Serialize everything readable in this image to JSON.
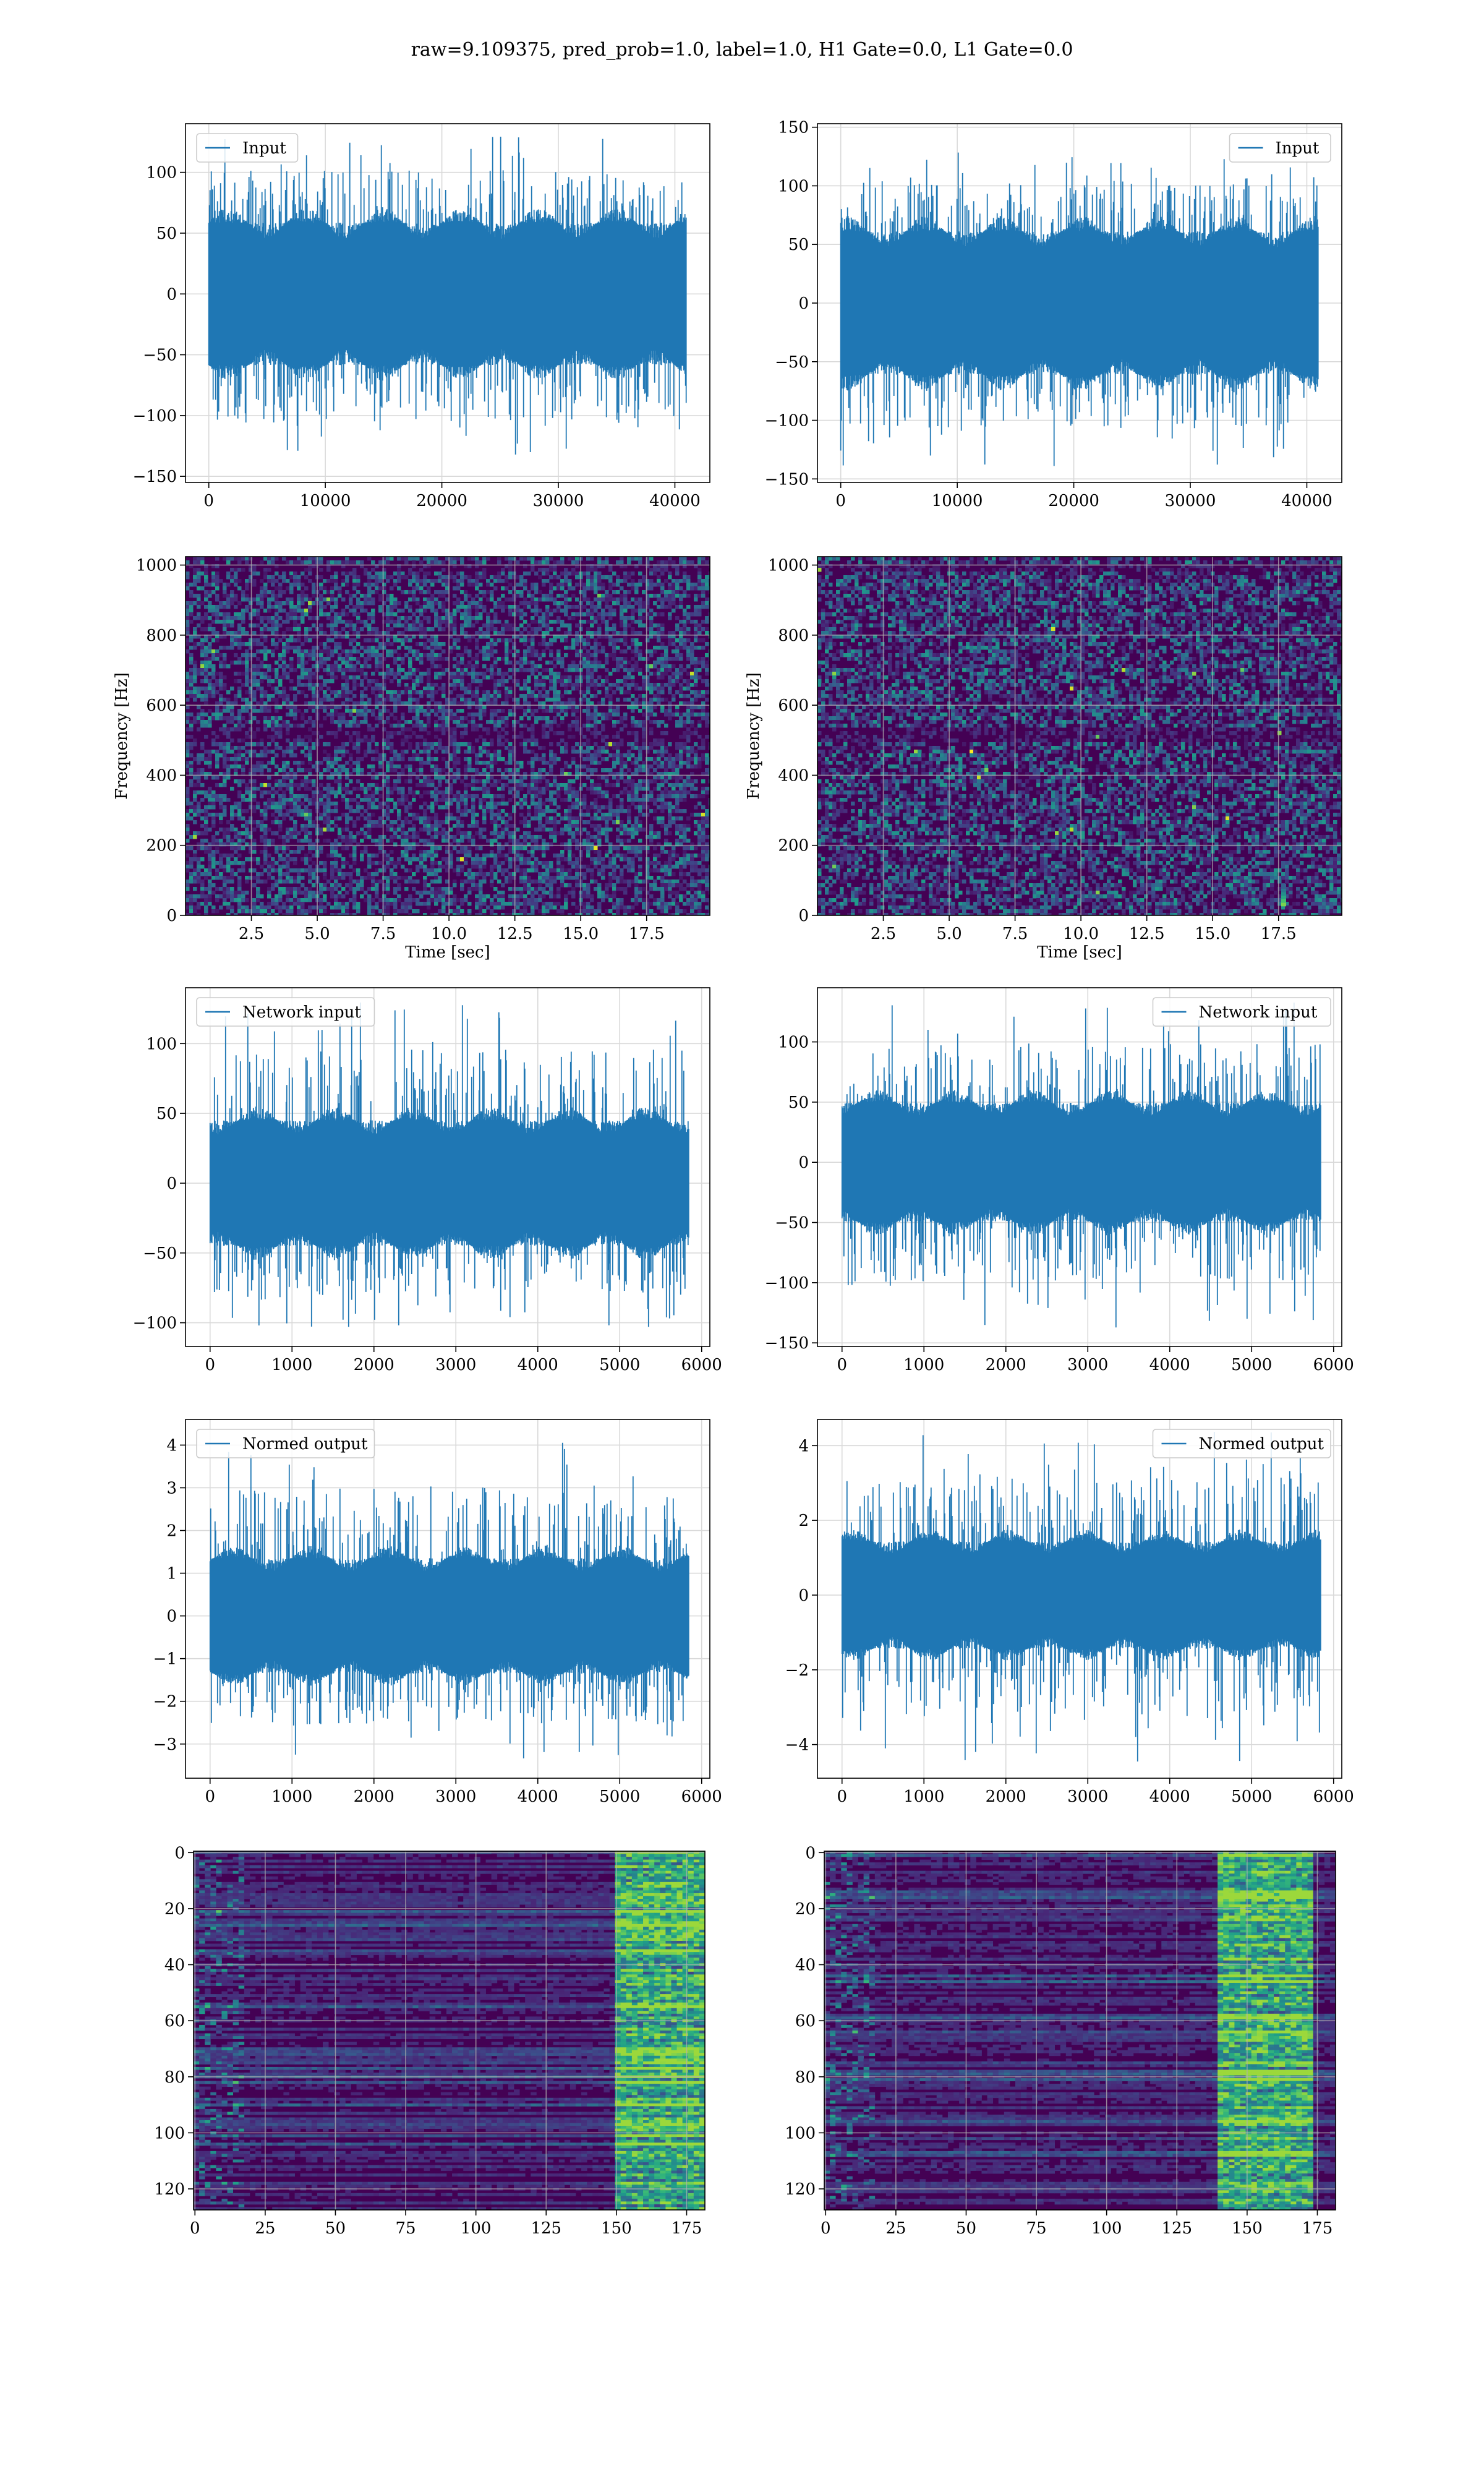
{
  "figure": {
    "suptitle": "raw=9.109375, pred_prob=1.0, label=1.0, H1 Gate=0.0, L1 Gate=0.0"
  },
  "colors": {
    "line": "#1f77b4",
    "grid": "#d9d9d9",
    "viridis": [
      "#440154",
      "#482878",
      "#3e4989",
      "#31688e",
      "#26828e",
      "#1f9e89",
      "#35b779",
      "#6ece58",
      "#b5de2b",
      "#fde725"
    ]
  },
  "chart_data": [
    {
      "id": "input-h1",
      "type": "line",
      "title": "",
      "xlabel": "",
      "ylabel": "",
      "legend": {
        "label": "Input",
        "loc": "upper-left"
      },
      "xlim": [
        -2000,
        43000
      ],
      "ylim": [
        -155,
        140
      ],
      "xticks": [
        0,
        10000,
        20000,
        30000,
        40000
      ],
      "yticks": [
        -150,
        -100,
        -50,
        0,
        50,
        100
      ],
      "series": [
        {
          "n": 40960,
          "x_range": [
            0,
            40960
          ],
          "typical_range": [
            -65,
            65
          ],
          "extremes": [
            -140,
            133
          ]
        }
      ],
      "grid": true
    },
    {
      "id": "input-l1",
      "type": "line",
      "title": "",
      "xlabel": "",
      "ylabel": "",
      "legend": {
        "label": "Input",
        "loc": "upper-right"
      },
      "xlim": [
        -2000,
        43000
      ],
      "ylim": [
        -153,
        153
      ],
      "xticks": [
        0,
        10000,
        20000,
        30000,
        40000
      ],
      "yticks": [
        -150,
        -100,
        -50,
        0,
        50,
        100,
        150
      ],
      "series": [
        {
          "n": 40960,
          "x_range": [
            0,
            40960
          ],
          "typical_range": [
            -68,
            68
          ],
          "extremes": [
            -140,
            130
          ]
        }
      ],
      "grid": true
    },
    {
      "id": "spectrogram-h1",
      "type": "heatmap",
      "title": "",
      "xlabel": "Time [sec]",
      "ylabel": "Frequency [Hz]",
      "xlim": [
        0,
        19.9
      ],
      "ylim": [
        0,
        1024
      ],
      "xticks": [
        2.5,
        5.0,
        7.5,
        10.0,
        12.5,
        15.0,
        17.5
      ],
      "xtick_labels": [
        "2.5",
        "5.0",
        "7.5",
        "10.0",
        "12.5",
        "15.0",
        "17.5"
      ],
      "yticks": [
        0,
        200,
        400,
        600,
        800,
        1000
      ],
      "colormap": "viridis",
      "grid": true
    },
    {
      "id": "spectrogram-l1",
      "type": "heatmap",
      "title": "",
      "xlabel": "Time [sec]",
      "ylabel": "Frequency [Hz]",
      "xlim": [
        0,
        19.9
      ],
      "ylim": [
        0,
        1024
      ],
      "xticks": [
        2.5,
        5.0,
        7.5,
        10.0,
        12.5,
        15.0,
        17.5
      ],
      "xtick_labels": [
        "2.5",
        "5.0",
        "7.5",
        "10.0",
        "12.5",
        "15.0",
        "17.5"
      ],
      "yticks": [
        0,
        200,
        400,
        600,
        800,
        1000
      ],
      "colormap": "viridis",
      "grid": true
    },
    {
      "id": "network-input-h1",
      "type": "line",
      "title": "",
      "xlabel": "",
      "ylabel": "",
      "legend": {
        "label": "Network input",
        "loc": "upper-left"
      },
      "xlim": [
        -300,
        6100
      ],
      "ylim": [
        -117,
        140
      ],
      "xticks": [
        0,
        1000,
        2000,
        3000,
        4000,
        5000,
        6000
      ],
      "yticks": [
        -100,
        -50,
        0,
        50,
        100
      ],
      "series": [
        {
          "n": 5840,
          "x_range": [
            0,
            5840
          ],
          "typical_range": [
            -50,
            50
          ],
          "extremes": [
            -105,
            133
          ]
        }
      ],
      "grid": true
    },
    {
      "id": "network-input-l1",
      "type": "line",
      "title": "",
      "xlabel": "",
      "ylabel": "",
      "legend": {
        "label": "Network input",
        "loc": "upper-right"
      },
      "xlim": [
        -300,
        6100
      ],
      "ylim": [
        -153,
        145
      ],
      "xticks": [
        0,
        1000,
        2000,
        3000,
        4000,
        5000,
        6000
      ],
      "yticks": [
        -150,
        -100,
        -50,
        0,
        50,
        100
      ],
      "series": [
        {
          "n": 5840,
          "x_range": [
            0,
            5840
          ],
          "typical_range": [
            -55,
            55
          ],
          "extremes": [
            -138,
            135
          ]
        }
      ],
      "grid": true
    },
    {
      "id": "normed-output-h1",
      "type": "line",
      "title": "",
      "xlabel": "",
      "ylabel": "",
      "legend": {
        "label": "Normed output",
        "loc": "upper-left"
      },
      "xlim": [
        -300,
        6100
      ],
      "ylim": [
        -3.8,
        4.6
      ],
      "xticks": [
        0,
        1000,
        2000,
        3000,
        4000,
        5000,
        6000
      ],
      "yticks": [
        -3,
        -2,
        -1,
        0,
        1,
        2,
        3,
        4
      ],
      "series": [
        {
          "n": 5840,
          "x_range": [
            0,
            5840
          ],
          "typical_range": [
            -1.5,
            1.5
          ],
          "extremes": [
            -3.4,
            4.3
          ]
        }
      ],
      "grid": true
    },
    {
      "id": "normed-output-l1",
      "type": "line",
      "title": "",
      "xlabel": "",
      "ylabel": "",
      "legend": {
        "label": "Normed output",
        "loc": "upper-right"
      },
      "xlim": [
        -300,
        6100
      ],
      "ylim": [
        -4.9,
        4.7
      ],
      "xticks": [
        0,
        1000,
        2000,
        3000,
        4000,
        5000,
        6000
      ],
      "yticks": [
        -4,
        -2,
        0,
        2,
        4
      ],
      "series": [
        {
          "n": 5840,
          "x_range": [
            0,
            5840
          ],
          "typical_range": [
            -1.6,
            1.6
          ],
          "extremes": [
            -4.5,
            4.4
          ]
        }
      ],
      "grid": true
    },
    {
      "id": "feature-map-h1",
      "type": "heatmap",
      "title": "",
      "xlabel": "",
      "ylabel": "",
      "xlim": [
        -0.5,
        181.5
      ],
      "ylim": [
        127.5,
        -0.5
      ],
      "xticks": [
        0,
        25,
        50,
        75,
        100,
        125,
        150,
        175
      ],
      "yticks": [
        0,
        20,
        40,
        60,
        80,
        100,
        120
      ],
      "rows": 128,
      "cols": 182,
      "active_columns": [
        150,
        182
      ],
      "colormap": "viridis",
      "grid": true
    },
    {
      "id": "feature-map-l1",
      "type": "heatmap",
      "title": "",
      "xlabel": "",
      "ylabel": "",
      "xlim": [
        -0.5,
        181.5
      ],
      "ylim": [
        127.5,
        -0.5
      ],
      "xticks": [
        0,
        25,
        50,
        75,
        100,
        125,
        150,
        175
      ],
      "yticks": [
        0,
        20,
        40,
        60,
        80,
        100,
        120
      ],
      "rows": 128,
      "cols": 182,
      "active_columns": [
        140,
        172
      ],
      "colormap": "viridis",
      "grid": true
    }
  ]
}
